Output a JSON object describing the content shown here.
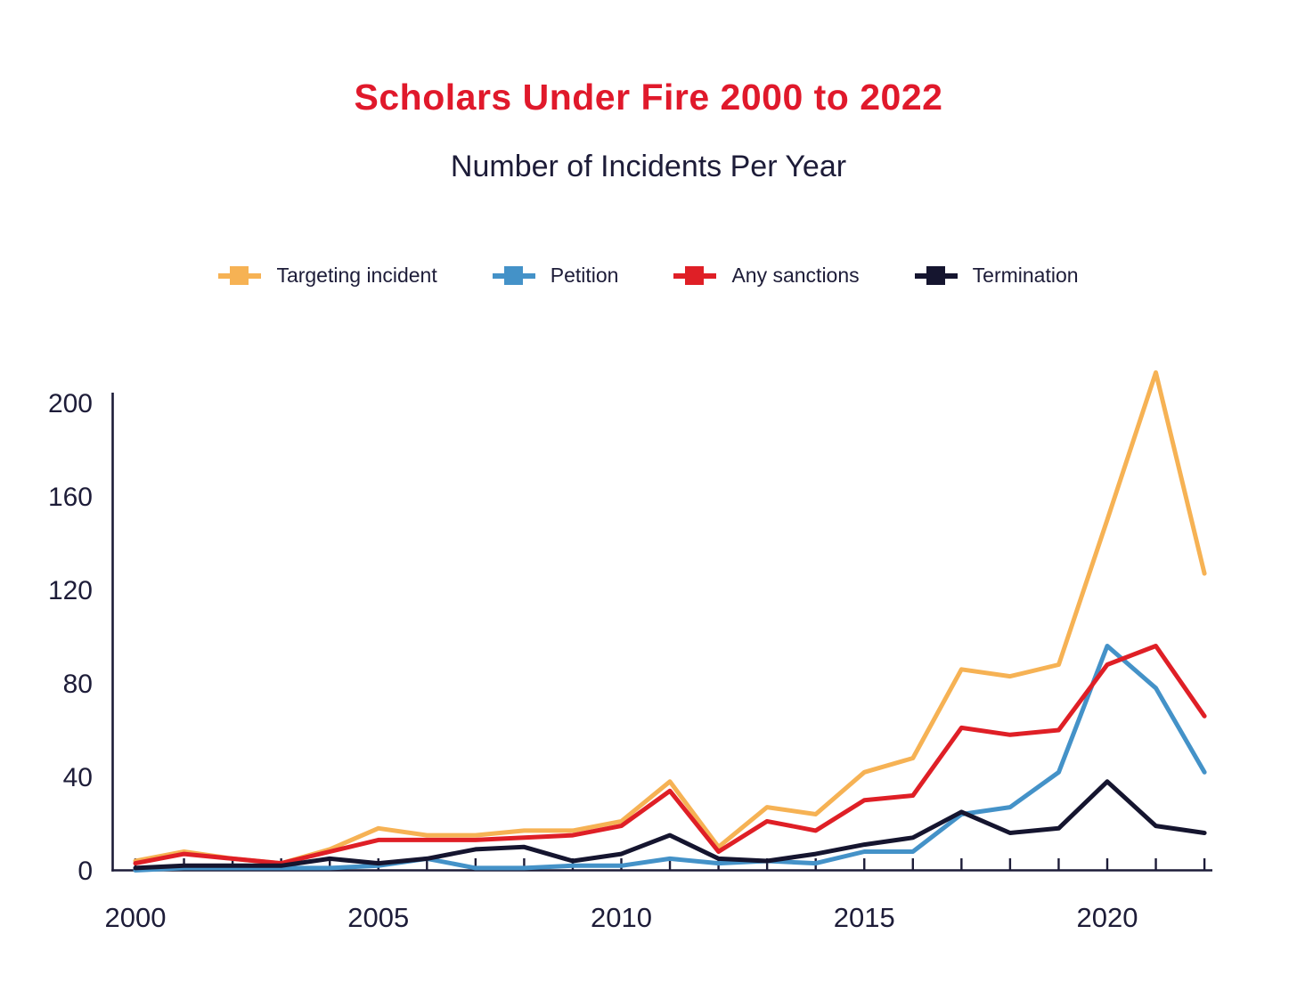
{
  "title": "Scholars Under Fire 2000 to 2022",
  "subtitle": "Number of Incidents Per Year",
  "colors": {
    "title_red": "#e0192b",
    "text_navy": "#1d1c38",
    "axis": "#1d1c38",
    "background": "#ffffff"
  },
  "legend": [
    {
      "label": "Targeting incident",
      "color": "#f6b254"
    },
    {
      "label": "Petition",
      "color": "#4492c8"
    },
    {
      "label": "Any sanctions",
      "color": "#df1f26"
    },
    {
      "label": "Termination",
      "color": "#15152f"
    }
  ],
  "chart_data": {
    "type": "line",
    "title": "Scholars Under Fire 2000 to 2022",
    "subtitle": "Number of Incidents Per Year",
    "xlabel": "",
    "ylabel": "",
    "x": [
      2000,
      2001,
      2002,
      2003,
      2004,
      2005,
      2006,
      2007,
      2008,
      2009,
      2010,
      2011,
      2012,
      2013,
      2014,
      2015,
      2016,
      2017,
      2018,
      2019,
      2020,
      2021,
      2022
    ],
    "series": [
      {
        "name": "Targeting incident",
        "color": "#f6b254",
        "values": [
          4,
          8,
          5,
          3,
          9,
          18,
          15,
          15,
          17,
          17,
          21,
          38,
          10,
          27,
          24,
          42,
          48,
          86,
          83,
          88,
          150,
          213,
          127
        ]
      },
      {
        "name": "Petition",
        "color": "#4492c8",
        "values": [
          0,
          1,
          1,
          1,
          1,
          2,
          5,
          1,
          1,
          2,
          2,
          5,
          3,
          4,
          3,
          8,
          8,
          24,
          27,
          42,
          96,
          78,
          42
        ]
      },
      {
        "name": "Any sanctions",
        "color": "#df1f26",
        "values": [
          3,
          7,
          5,
          3,
          8,
          13,
          13,
          13,
          14,
          15,
          19,
          34,
          8,
          21,
          17,
          30,
          32,
          61,
          58,
          60,
          88,
          96,
          66
        ]
      },
      {
        "name": "Termination",
        "color": "#15152f",
        "values": [
          1,
          2,
          2,
          2,
          5,
          3,
          5,
          9,
          10,
          4,
          7,
          15,
          5,
          4,
          7,
          11,
          14,
          25,
          16,
          18,
          38,
          19,
          16
        ]
      }
    ],
    "ylim": [
      0,
      200
    ],
    "yticks": [
      0,
      40,
      80,
      120,
      160,
      200
    ],
    "xticks_labeled": [
      2000,
      2005,
      2010,
      2015,
      2020
    ],
    "grid": false,
    "legend_position": "top"
  }
}
